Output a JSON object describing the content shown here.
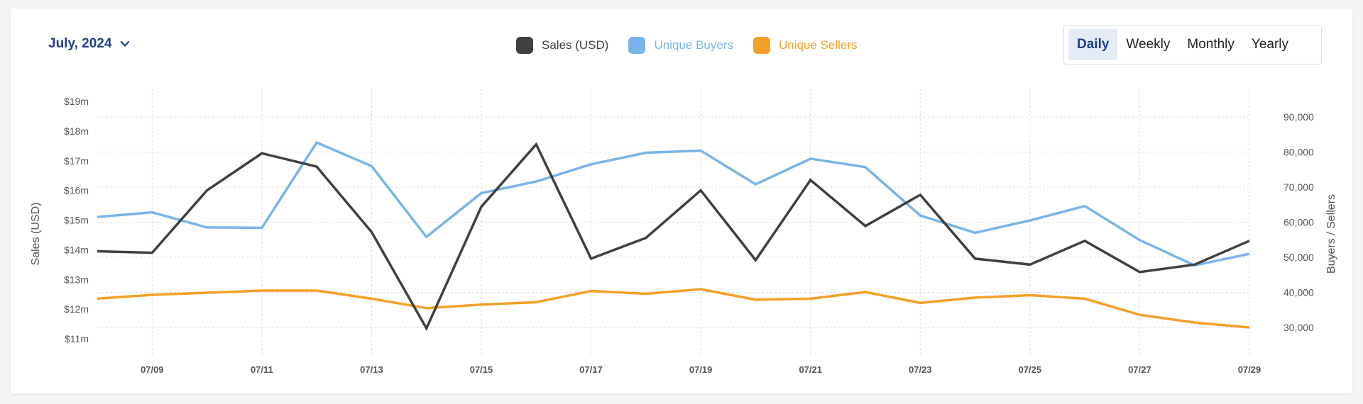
{
  "month_select": {
    "label": "July, 2024",
    "icon": "chevron-down-icon"
  },
  "period_tabs": [
    {
      "label": "Daily",
      "active": true
    },
    {
      "label": "Weekly",
      "active": false
    },
    {
      "label": "Monthly",
      "active": false
    },
    {
      "label": "Yearly",
      "active": false
    }
  ],
  "chart_data": {
    "type": "line",
    "title": "",
    "ylabel_left": "Sales (USD)",
    "ylabel_right": "Buyers / Sellers",
    "y_left_ticks": [
      "$11m",
      "$12m",
      "$13m",
      "$14m",
      "$15m",
      "$16m",
      "$17m",
      "$18m",
      "$19m"
    ],
    "y_left_lim": [
      11,
      19
    ],
    "y_right_ticks": [
      "30,000",
      "40,000",
      "50,000",
      "60,000",
      "70,000",
      "80,000",
      "90,000"
    ],
    "y_right_lim": [
      30000,
      90000
    ],
    "x_tick_labels": [
      "07/09",
      "07/11",
      "07/13",
      "07/15",
      "07/17",
      "07/19",
      "07/21",
      "07/23",
      "07/25",
      "07/27",
      "07/29"
    ],
    "x_labels_at_day": [
      9,
      11,
      13,
      15,
      17,
      19,
      21,
      23,
      25,
      27,
      29
    ],
    "x_days": [
      8,
      9,
      10,
      11,
      12,
      13,
      14,
      15,
      16,
      17,
      18,
      19,
      20,
      21,
      22,
      23,
      24,
      25,
      26,
      27,
      28,
      29
    ],
    "grid": true,
    "legend_position": "top-center",
    "series": [
      {
        "name": "Sales (USD)",
        "axis": "left",
        "color": "#404040",
        "values": [
          13.95,
          13.9,
          16.0,
          17.25,
          16.8,
          14.6,
          11.35,
          15.45,
          17.55,
          13.7,
          14.4,
          16.0,
          13.65,
          16.35,
          14.8,
          15.85,
          13.7,
          13.5,
          14.3,
          13.25,
          13.5,
          14.3
        ]
      },
      {
        "name": "Unique Buyers",
        "axis": "right",
        "color": "#7ab3e8",
        "values": [
          61500,
          62800,
          58500,
          58400,
          82700,
          76000,
          55800,
          68300,
          71600,
          76500,
          79800,
          80400,
          70800,
          78100,
          75700,
          61900,
          57000,
          60500,
          64600,
          54900,
          47700,
          51000
        ]
      },
      {
        "name": "Unique Sellers",
        "axis": "right",
        "color": "#f4a027",
        "values": [
          38200,
          39300,
          39900,
          40500,
          40500,
          38200,
          35500,
          36500,
          37200,
          40400,
          39600,
          40900,
          37900,
          38200,
          40100,
          37000,
          38500,
          39200,
          38200,
          33600,
          31400,
          30000
        ]
      }
    ]
  }
}
